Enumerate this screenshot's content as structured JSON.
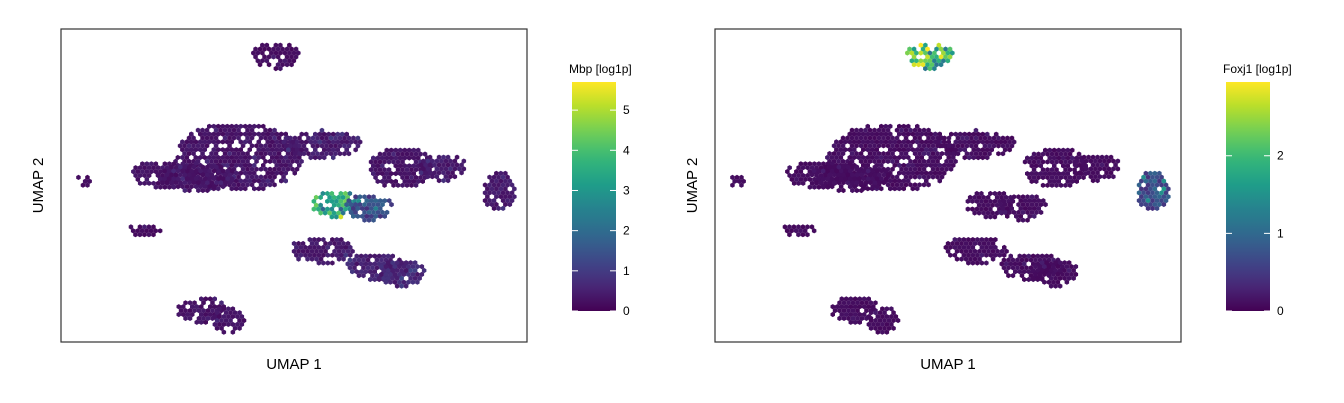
{
  "chart_data": [
    {
      "type": "hexbin",
      "xlabel": "UMAP 1",
      "ylabel": "UMAP 2",
      "colorbar": {
        "title": "Mbp [log1p]",
        "range": [
          0,
          5.7
        ],
        "ticks": [
          0,
          1,
          2,
          3,
          4,
          5
        ],
        "colormap": "viridis"
      },
      "clusters": [
        {
          "x": 4.6,
          "y": 8.7,
          "value": 0.2
        },
        {
          "x": 3.8,
          "y": 5.6,
          "value": 0.3
        },
        {
          "x": 2.2,
          "y": 5.1,
          "value": 0.3
        },
        {
          "x": 2.9,
          "y": 5.0,
          "value": 0.3
        },
        {
          "x": 5.6,
          "y": 6.0,
          "value": 0.4
        },
        {
          "x": 7.3,
          "y": 5.3,
          "value": 0.3
        },
        {
          "x": 8.2,
          "y": 5.3,
          "value": 0.4
        },
        {
          "x": 9.4,
          "y": 4.6,
          "value": 0.4
        },
        {
          "x": 0.5,
          "y": 4.9,
          "value": 0.2
        },
        {
          "x": 5.9,
          "y": 4.2,
          "value": 3.2
        },
        {
          "x": 6.6,
          "y": 4.1,
          "value": 1.3
        },
        {
          "x": 1.8,
          "y": 3.4,
          "value": 0.2
        },
        {
          "x": 5.6,
          "y": 2.8,
          "value": 0.4
        },
        {
          "x": 6.8,
          "y": 2.3,
          "value": 0.5
        },
        {
          "x": 7.3,
          "y": 2.1,
          "value": 0.6
        },
        {
          "x": 3.0,
          "y": 1.0,
          "value": 0.3
        },
        {
          "x": 3.6,
          "y": 0.7,
          "value": 0.3
        }
      ]
    },
    {
      "type": "hexbin",
      "xlabel": "UMAP 1",
      "ylabel": "UMAP 2",
      "colorbar": {
        "title": "Foxj1 [log1p]",
        "range": [
          0,
          2.95
        ],
        "ticks": [
          0,
          1,
          2
        ],
        "colormap": "viridis"
      },
      "clusters": [
        {
          "x": 4.6,
          "y": 8.7,
          "value": 2.0
        },
        {
          "x": 3.8,
          "y": 5.6,
          "value": 0.1
        },
        {
          "x": 2.2,
          "y": 5.1,
          "value": 0.1
        },
        {
          "x": 2.9,
          "y": 5.0,
          "value": 0.1
        },
        {
          "x": 5.6,
          "y": 6.0,
          "value": 0.1
        },
        {
          "x": 7.3,
          "y": 5.3,
          "value": 0.1
        },
        {
          "x": 8.2,
          "y": 5.3,
          "value": 0.1
        },
        {
          "x": 9.4,
          "y": 4.6,
          "value": 0.7
        },
        {
          "x": 0.5,
          "y": 4.9,
          "value": 0.1
        },
        {
          "x": 5.9,
          "y": 4.2,
          "value": 0.1
        },
        {
          "x": 6.6,
          "y": 4.1,
          "value": 0.1
        },
        {
          "x": 1.8,
          "y": 3.4,
          "value": 0.1
        },
        {
          "x": 5.6,
          "y": 2.8,
          "value": 0.1
        },
        {
          "x": 6.8,
          "y": 2.3,
          "value": 0.1
        },
        {
          "x": 7.3,
          "y": 2.1,
          "value": 0.1
        },
        {
          "x": 3.0,
          "y": 1.0,
          "value": 0.1
        },
        {
          "x": 3.6,
          "y": 0.7,
          "value": 0.1
        }
      ]
    }
  ]
}
